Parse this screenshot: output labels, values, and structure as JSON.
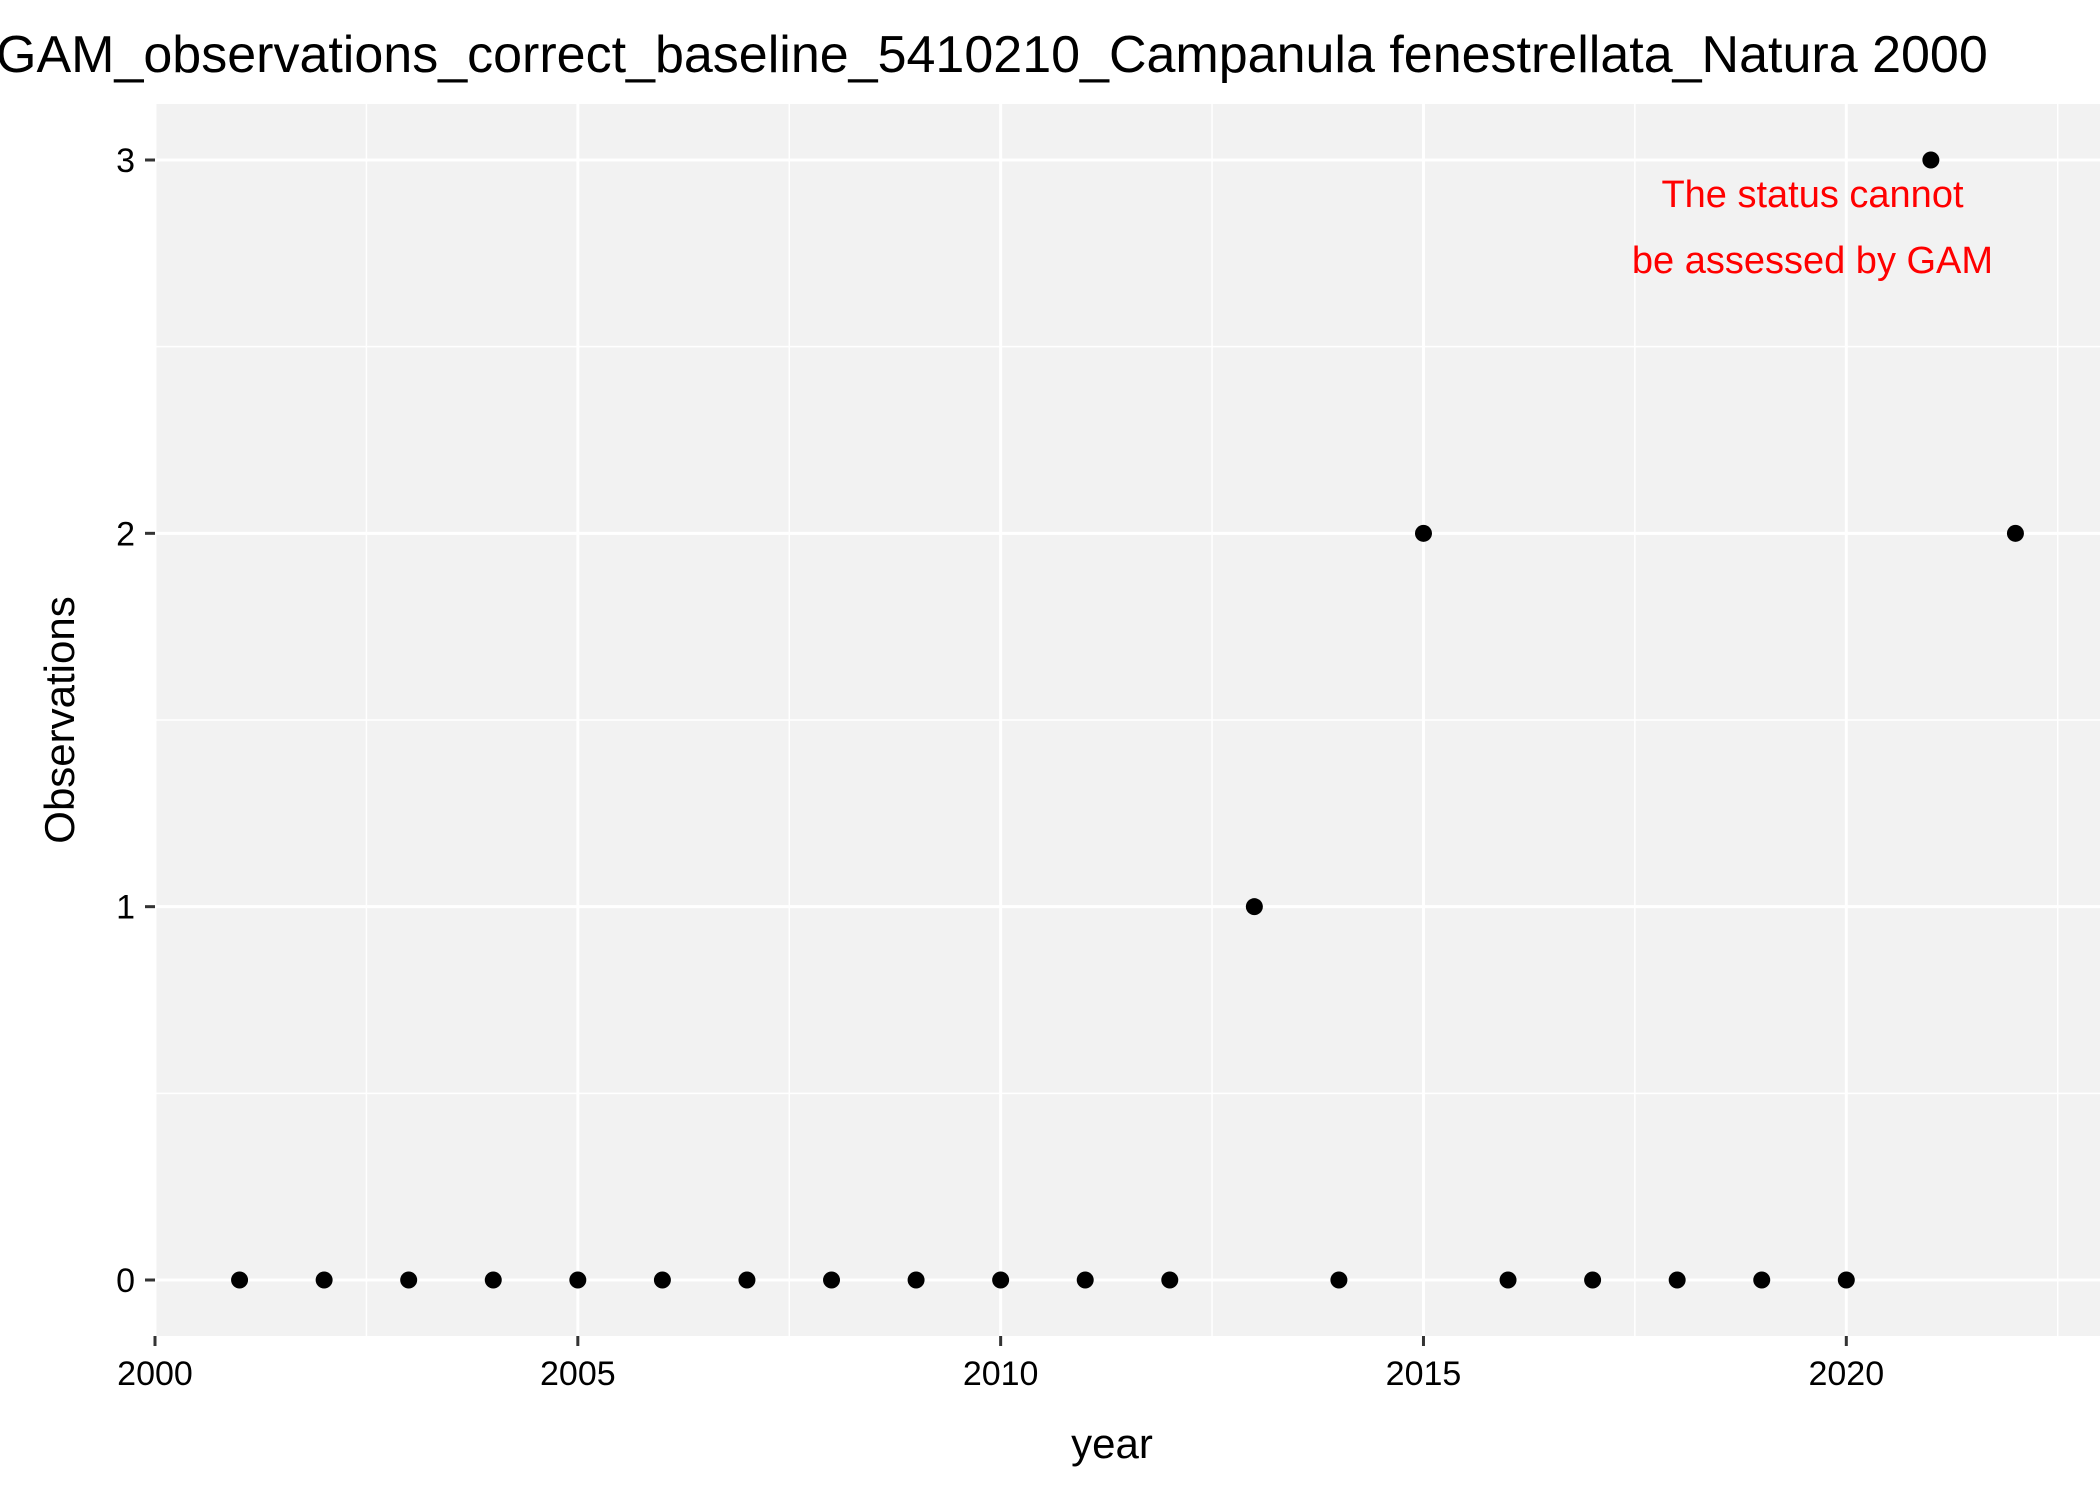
{
  "chart_data": {
    "type": "scatter",
    "title": "GAM_observations_correct_baseline_5410210_Campanula fenestrellata_Natura 2000",
    "xlabel": "year",
    "ylabel": "Observations",
    "xlim": [
      2000,
      2023
    ],
    "ylim": [
      -0.15,
      3.15
    ],
    "x_ticks": [
      2000,
      2005,
      2010,
      2015,
      2020
    ],
    "x_tick_labels": [
      "2000",
      "2005",
      "2010",
      "2015",
      "2020"
    ],
    "y_ticks": [
      0,
      1,
      2,
      3
    ],
    "y_tick_labels": [
      "0",
      "1",
      "2",
      "3"
    ],
    "grid": true,
    "legend": "none",
    "points": [
      {
        "x": 2001,
        "y": 0
      },
      {
        "x": 2002,
        "y": 0
      },
      {
        "x": 2003,
        "y": 0
      },
      {
        "x": 2004,
        "y": 0
      },
      {
        "x": 2005,
        "y": 0
      },
      {
        "x": 2006,
        "y": 0
      },
      {
        "x": 2007,
        "y": 0
      },
      {
        "x": 2008,
        "y": 0
      },
      {
        "x": 2009,
        "y": 0
      },
      {
        "x": 2010,
        "y": 0
      },
      {
        "x": 2011,
        "y": 0
      },
      {
        "x": 2012,
        "y": 0
      },
      {
        "x": 2013,
        "y": 1
      },
      {
        "x": 2014,
        "y": 0
      },
      {
        "x": 2015,
        "y": 2
      },
      {
        "x": 2016,
        "y": 0
      },
      {
        "x": 2017,
        "y": 0
      },
      {
        "x": 2018,
        "y": 0
      },
      {
        "x": 2019,
        "y": 0
      },
      {
        "x": 2020,
        "y": 0
      },
      {
        "x": 2021,
        "y": 3
      },
      {
        "x": 2022,
        "y": 2
      }
    ],
    "annotation": {
      "lines": [
        "The status cannot",
        "be assessed by GAM"
      ],
      "x": 2019.6,
      "y": 2.82
    },
    "colors": {
      "panel": "#f2f2f2",
      "grid": "#ffffff",
      "point": "#000000",
      "annotation": "#ff0000"
    }
  }
}
